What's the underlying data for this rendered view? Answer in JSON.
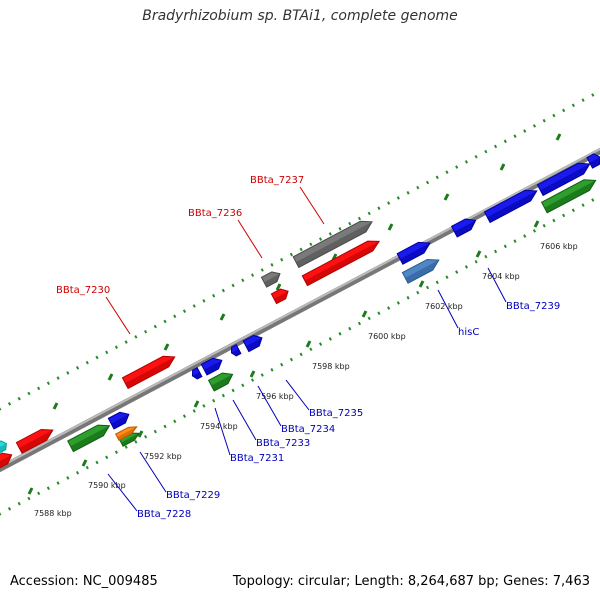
{
  "title": "Bradyrhizobium sp. BTAi1, complete genome",
  "footer": {
    "accession": "Accession: NC_009485",
    "summary": "Topology: circular; Length: 8,264,687 bp; Genes: 7,463"
  },
  "colors": {
    "backbone": "#888888",
    "tick": "#228822",
    "label_red": "#cc0000",
    "label_blue": "#0000bb"
  },
  "ticks": [
    {
      "label": "7588 kbp"
    },
    {
      "label": "7590 kbp"
    },
    {
      "label": "7592 kbp"
    },
    {
      "label": "7594 kbp"
    },
    {
      "label": "7596 kbp"
    },
    {
      "label": "7598 kbp"
    },
    {
      "label": "7600 kbp"
    },
    {
      "label": "7602 kbp"
    },
    {
      "label": "7604 kbp"
    },
    {
      "label": "7606 kbp"
    }
  ],
  "labels": [
    {
      "text": "BBta_7237",
      "color": "#cc0000"
    },
    {
      "text": "BBta_7236",
      "color": "#cc0000"
    },
    {
      "text": "BBta_7230",
      "color": "#cc0000"
    },
    {
      "text": "BBta_7239",
      "color": "#0000bb"
    },
    {
      "text": "hisC",
      "color": "#0000bb"
    },
    {
      "text": "BBta_7235",
      "color": "#0000bb"
    },
    {
      "text": "BBta_7234",
      "color": "#0000bb"
    },
    {
      "text": "BBta_7233",
      "color": "#0000bb"
    },
    {
      "text": "BBta_7231",
      "color": "#0000bb"
    },
    {
      "text": "BBta_7229",
      "color": "#0000bb"
    },
    {
      "text": "BBta_7228",
      "color": "#0000bb"
    }
  ],
  "genes": [
    {
      "color": "red"
    },
    {
      "color": "red"
    },
    {
      "color": "red"
    },
    {
      "color": "red"
    },
    {
      "color": "red"
    },
    {
      "color": "gray"
    },
    {
      "color": "gray"
    },
    {
      "color": "blue"
    },
    {
      "color": "blue"
    },
    {
      "color": "blue"
    },
    {
      "color": "blue"
    },
    {
      "color": "blue"
    },
    {
      "color": "blue"
    },
    {
      "color": "blue"
    },
    {
      "color": "blue"
    },
    {
      "color": "blue"
    },
    {
      "color": "blue"
    },
    {
      "color": "steelblue"
    },
    {
      "color": "green"
    },
    {
      "color": "green"
    },
    {
      "color": "green"
    },
    {
      "color": "green"
    },
    {
      "color": "orange"
    },
    {
      "color": "cyan"
    }
  ]
}
